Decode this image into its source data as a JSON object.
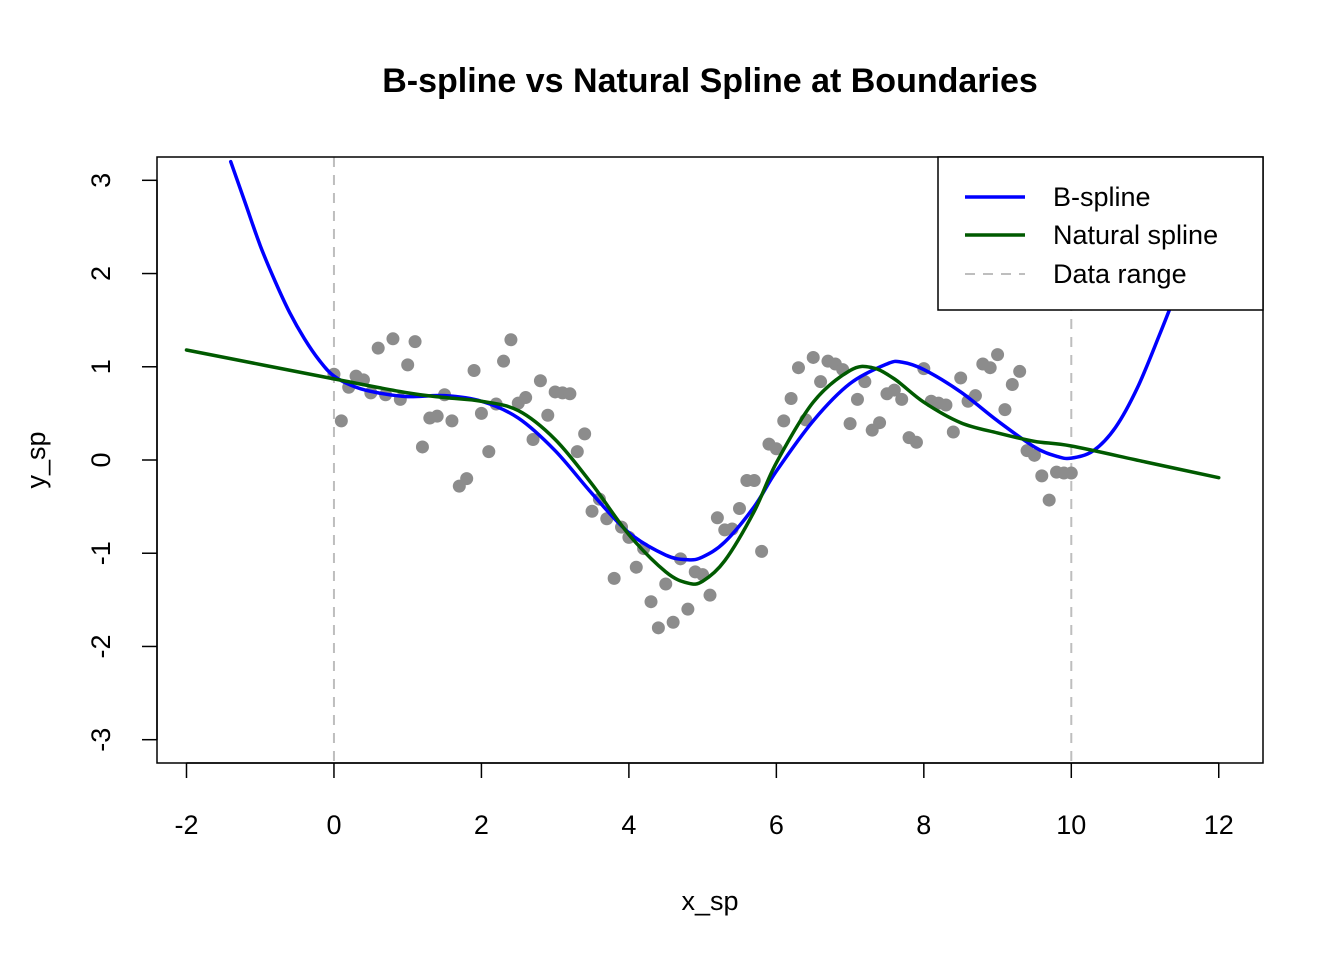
{
  "chart_data": {
    "type": "scatter",
    "title": "B-spline vs Natural Spline at Boundaries",
    "xlabel": "x_sp",
    "ylabel": "y_sp",
    "xlim": [
      -2.4,
      12.6
    ],
    "ylim": [
      -3.25,
      3.25
    ],
    "x_ticks": [
      -2,
      0,
      2,
      4,
      6,
      8,
      10,
      12
    ],
    "y_ticks": [
      -3,
      -2,
      -1,
      0,
      1,
      2,
      3
    ],
    "grid": false,
    "legend_position": "top-right",
    "points": {
      "color": "#8c8c8c",
      "x": [
        0.0,
        0.1,
        0.2,
        0.3,
        0.4,
        0.5,
        0.6,
        0.7,
        0.8,
        0.9,
        1.0,
        1.1,
        1.2,
        1.3,
        1.4,
        1.5,
        1.6,
        1.7,
        1.8,
        1.9,
        2.0,
        2.1,
        2.2,
        2.3,
        2.4,
        2.5,
        2.6,
        2.7,
        2.8,
        2.9,
        3.0,
        3.1,
        3.2,
        3.3,
        3.4,
        3.5,
        3.6,
        3.7,
        3.8,
        3.9,
        4.0,
        4.1,
        4.2,
        4.3,
        4.4,
        4.5,
        4.6,
        4.7,
        4.8,
        4.9,
        5.0,
        5.1,
        5.2,
        5.3,
        5.4,
        5.5,
        5.6,
        5.7,
        5.8,
        5.9,
        6.0,
        6.1,
        6.2,
        6.3,
        6.4,
        6.5,
        6.6,
        6.7,
        6.8,
        6.9,
        7.0,
        7.1,
        7.2,
        7.3,
        7.4,
        7.5,
        7.6,
        7.7,
        7.8,
        7.9,
        8.0,
        8.1,
        8.2,
        8.3,
        8.4,
        8.5,
        8.6,
        8.7,
        8.8,
        8.9,
        9.0,
        9.1,
        9.2,
        9.3,
        9.4,
        9.5,
        9.6,
        9.7,
        9.8,
        9.9,
        10.0
      ],
      "y": [
        0.92,
        0.42,
        0.78,
        0.9,
        0.86,
        0.72,
        1.2,
        0.7,
        1.3,
        0.65,
        1.02,
        1.27,
        0.14,
        0.45,
        0.47,
        0.7,
        0.42,
        -0.28,
        -0.2,
        0.96,
        0.5,
        0.09,
        0.6,
        1.06,
        1.29,
        0.61,
        0.67,
        0.22,
        0.85,
        0.48,
        0.73,
        0.72,
        0.71,
        0.09,
        0.28,
        -0.55,
        -0.42,
        -0.63,
        -1.27,
        -0.72,
        -0.83,
        -1.15,
        -0.95,
        -1.52,
        -1.8,
        -1.33,
        -1.74,
        -1.06,
        -1.6,
        -1.2,
        -1.23,
        -1.45,
        -0.62,
        -0.75,
        -0.74,
        -0.52,
        -0.22,
        -0.22,
        -0.98,
        0.17,
        0.12,
        0.42,
        0.66,
        0.99,
        0.43,
        1.1,
        0.84,
        1.06,
        1.03,
        0.97,
        0.39,
        0.65,
        0.84,
        0.32,
        0.4,
        0.71,
        0.75,
        0.65,
        0.24,
        0.19,
        0.98,
        0.63,
        0.61,
        0.59,
        0.3,
        0.88,
        0.63,
        0.69,
        1.03,
        0.99,
        1.13,
        0.54,
        0.81,
        0.95,
        0.1,
        0.05,
        -0.17,
        -0.43,
        -0.13,
        -0.14,
        -0.14
      ]
    },
    "series": [
      {
        "name": "B-spline",
        "color": "#0000ff",
        "x": [
          -1.4,
          -1.2,
          -1.0,
          -0.8,
          -0.6,
          -0.4,
          -0.2,
          0.0,
          0.3,
          0.6,
          1.0,
          1.5,
          2.0,
          2.5,
          3.0,
          3.5,
          4.0,
          4.5,
          4.8,
          5.0,
          5.3,
          5.7,
          6.0,
          6.5,
          7.0,
          7.5,
          7.7,
          8.0,
          8.5,
          9.0,
          9.5,
          9.8,
          10.0,
          10.3,
          10.6,
          10.9,
          11.2,
          11.4
        ],
        "y": [
          3.2,
          2.75,
          2.3,
          1.92,
          1.58,
          1.3,
          1.07,
          0.9,
          0.78,
          0.72,
          0.68,
          0.69,
          0.63,
          0.45,
          0.1,
          -0.36,
          -0.78,
          -1.02,
          -1.07,
          -1.04,
          -0.88,
          -0.5,
          -0.12,
          0.42,
          0.82,
          1.03,
          1.05,
          0.97,
          0.73,
          0.42,
          0.14,
          0.04,
          0.02,
          0.1,
          0.35,
          0.78,
          1.35,
          1.75
        ]
      },
      {
        "name": "Natural spline",
        "color": "#005a00",
        "x": [
          -2.0,
          0.0,
          1.0,
          1.5,
          2.0,
          2.5,
          3.0,
          3.5,
          4.0,
          4.5,
          4.8,
          5.0,
          5.3,
          5.7,
          6.0,
          6.5,
          7.0,
          7.3,
          7.6,
          8.0,
          8.5,
          9.0,
          9.5,
          10.0,
          11.0,
          12.0
        ],
        "y": [
          1.18,
          0.87,
          0.72,
          0.67,
          0.63,
          0.53,
          0.22,
          -0.26,
          -0.8,
          -1.2,
          -1.32,
          -1.3,
          -1.08,
          -0.55,
          -0.03,
          0.62,
          0.96,
          0.99,
          0.87,
          0.62,
          0.4,
          0.29,
          0.2,
          0.15,
          -0.02,
          -0.19
        ]
      }
    ],
    "reference_lines": {
      "name": "Data range",
      "color": "#bebebe",
      "x": [
        0,
        10
      ]
    },
    "legend": [
      "B-spline",
      "Natural spline",
      "Data range"
    ]
  }
}
